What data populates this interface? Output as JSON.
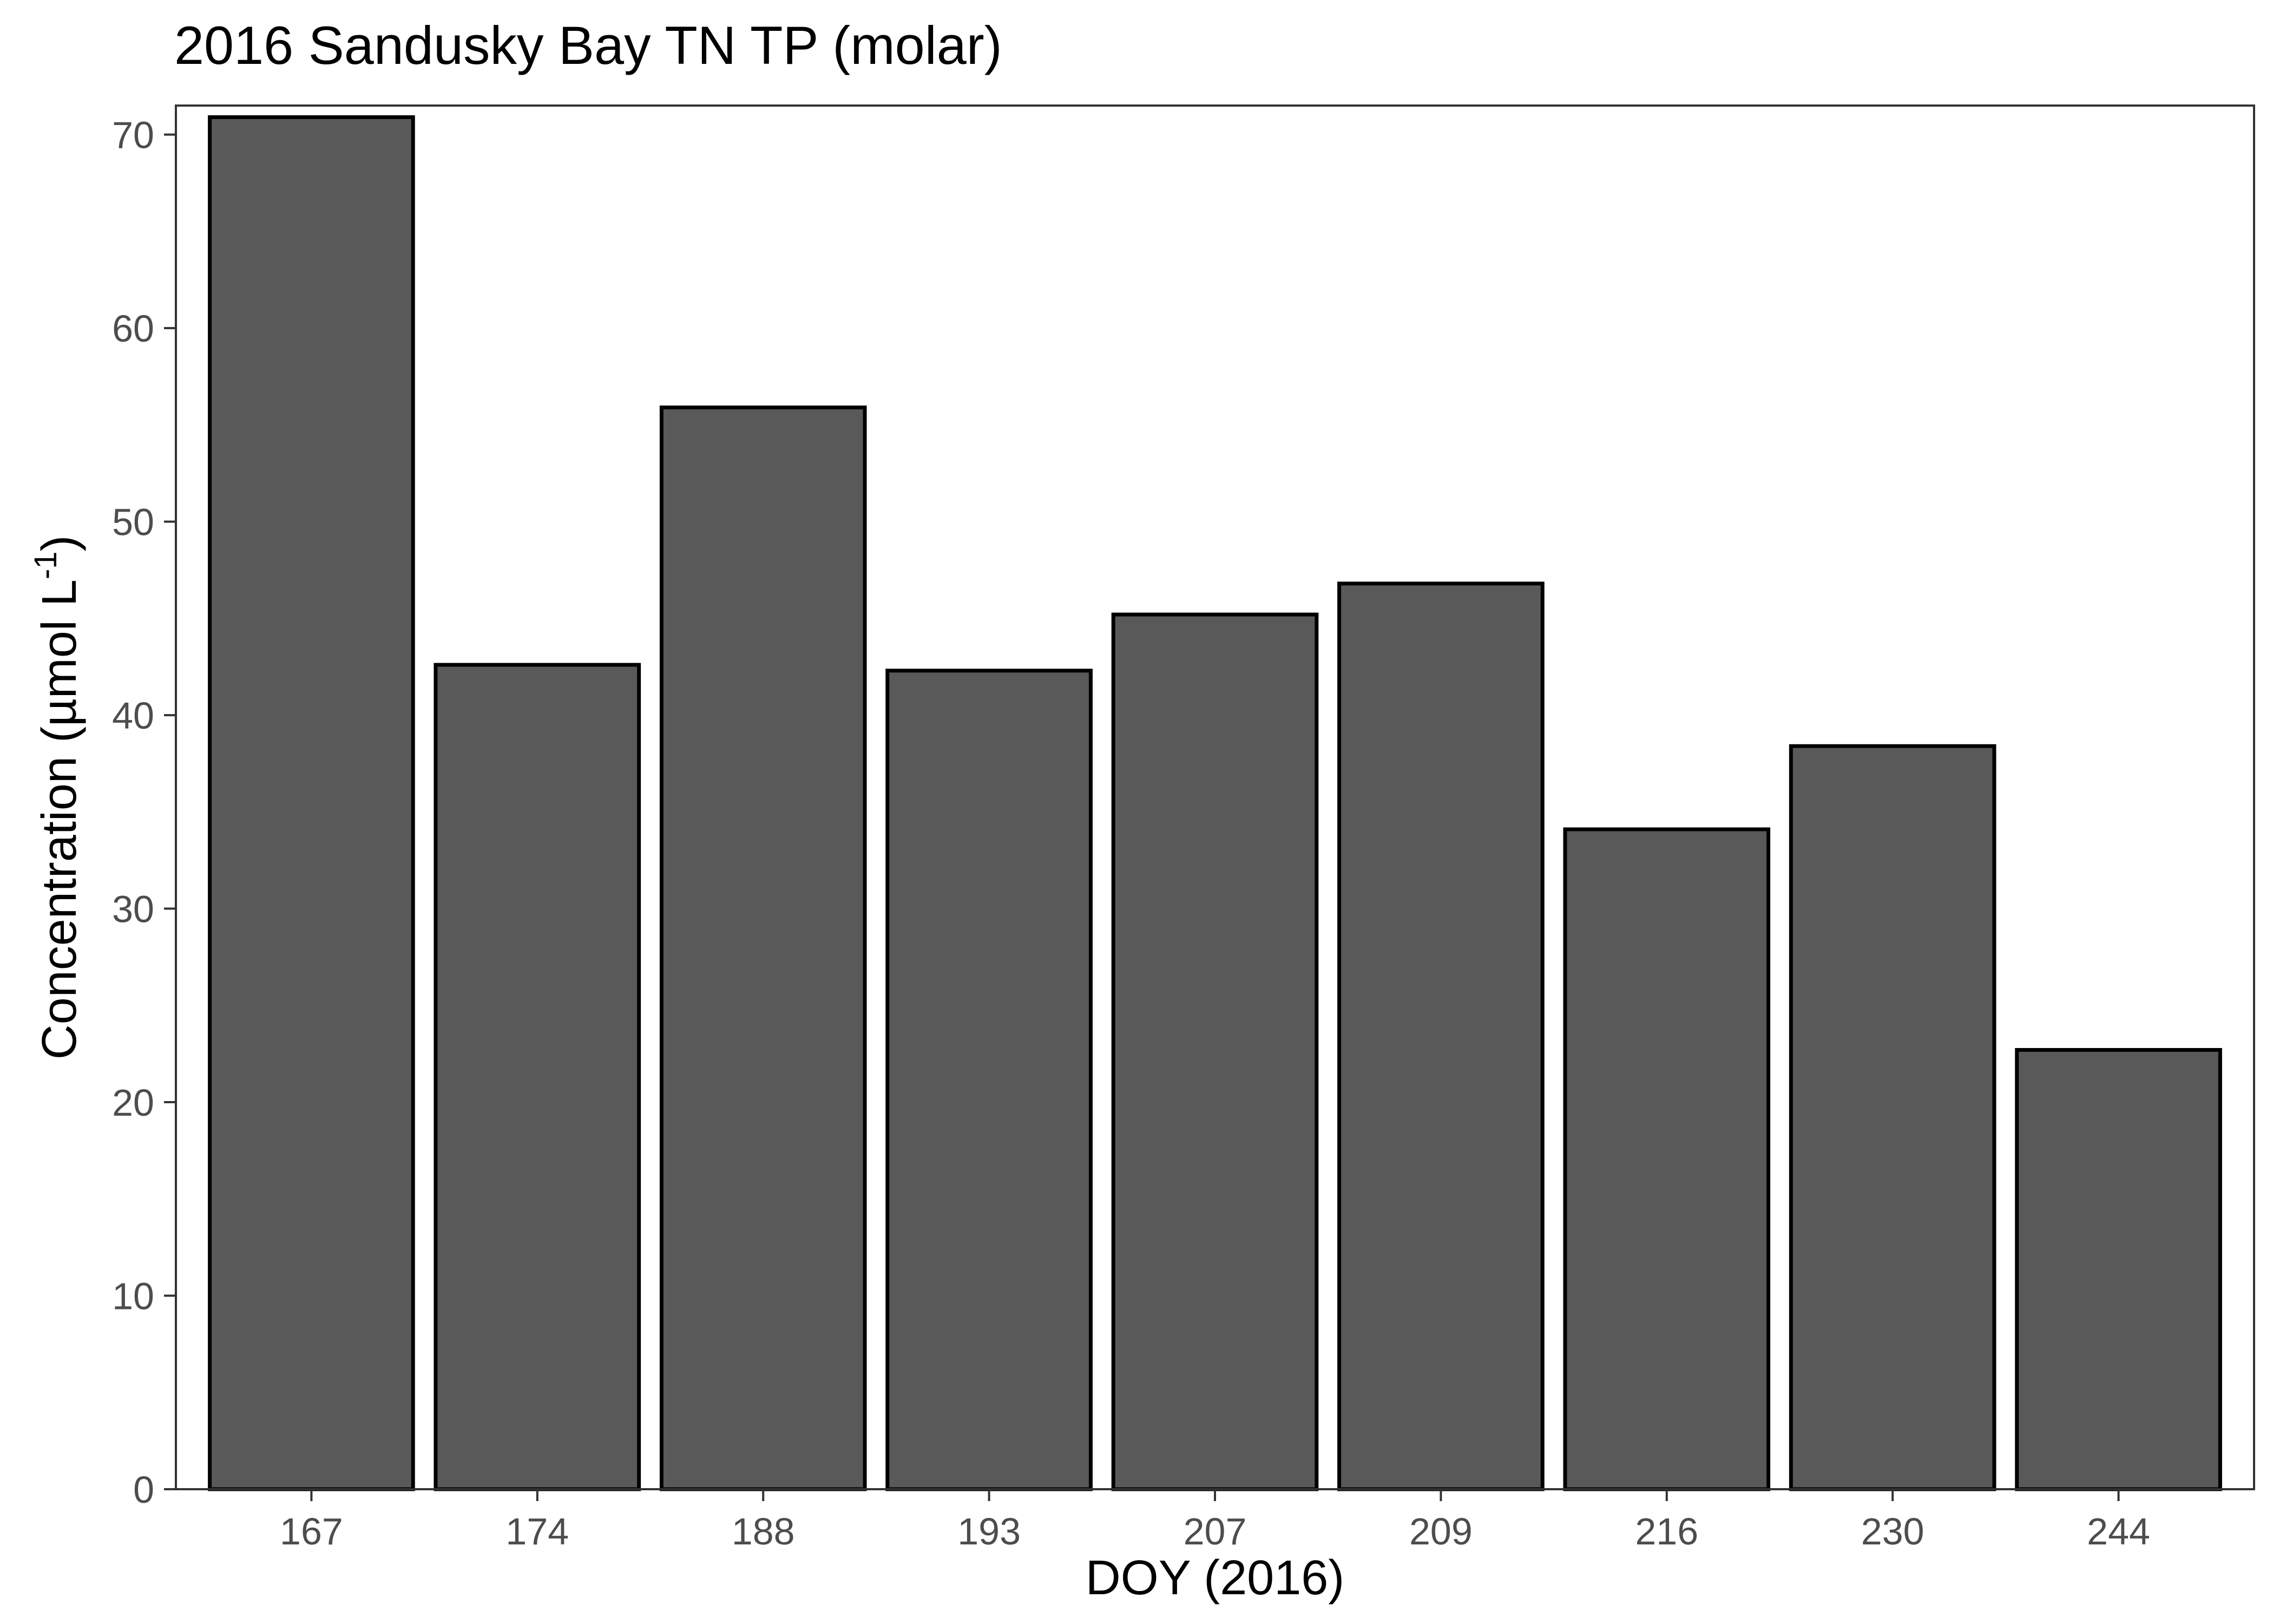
{
  "chart_data": {
    "type": "bar",
    "title": "2016 Sandusky Bay TN TP (molar)",
    "xlabel": "DOY (2016)",
    "ylabel": {
      "prefix": "Concentration (µmol L",
      "superscript": "-1",
      "suffix": ")"
    },
    "categories": [
      "167",
      "174",
      "188",
      "193",
      "207",
      "209",
      "216",
      "230",
      "244"
    ],
    "values": [
      70.9,
      42.6,
      55.9,
      42.3,
      45.2,
      46.8,
      34.1,
      38.4,
      22.7
    ],
    "ylim": [
      0,
      71.5
    ],
    "yticks": [
      0,
      10,
      20,
      30,
      40,
      50,
      60,
      70
    ],
    "grid": false,
    "legend": "none",
    "colors": {
      "bar_fill": "#595959",
      "bar_stroke": "#000000",
      "panel_border": "#333333",
      "tick_text": "#4d4d4d"
    }
  }
}
